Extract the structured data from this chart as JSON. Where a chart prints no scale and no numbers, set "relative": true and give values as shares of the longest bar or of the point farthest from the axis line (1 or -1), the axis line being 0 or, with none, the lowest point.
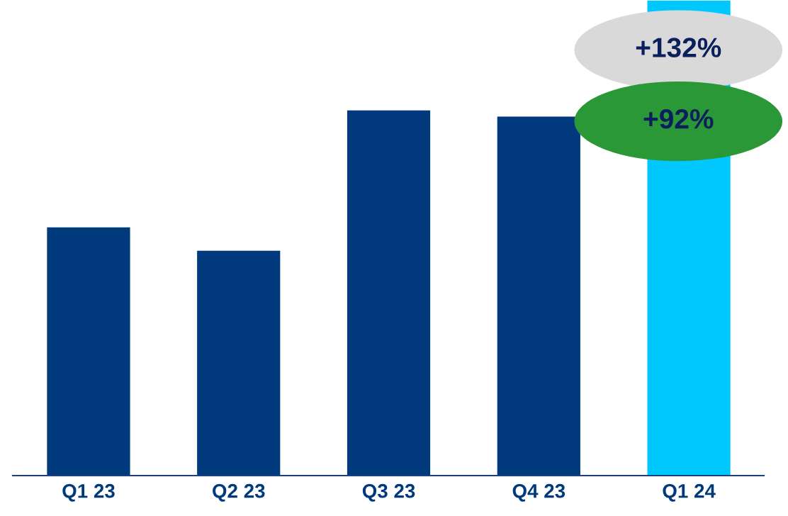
{
  "chart_data": {
    "type": "bar",
    "relative": true,
    "categories": [
      "Q1 23",
      "Q2 23",
      "Q3 23",
      "Q4 23",
      "Q1 24"
    ],
    "values": [
      0.523,
      0.474,
      0.769,
      0.756,
      1
    ],
    "colors": [
      "#003a7d",
      "#003a7d",
      "#003a7d",
      "#003a7d",
      "#00c8ff"
    ],
    "annotations": [
      "+132%",
      "+92%"
    ],
    "grid": false,
    "legend": false
  }
}
